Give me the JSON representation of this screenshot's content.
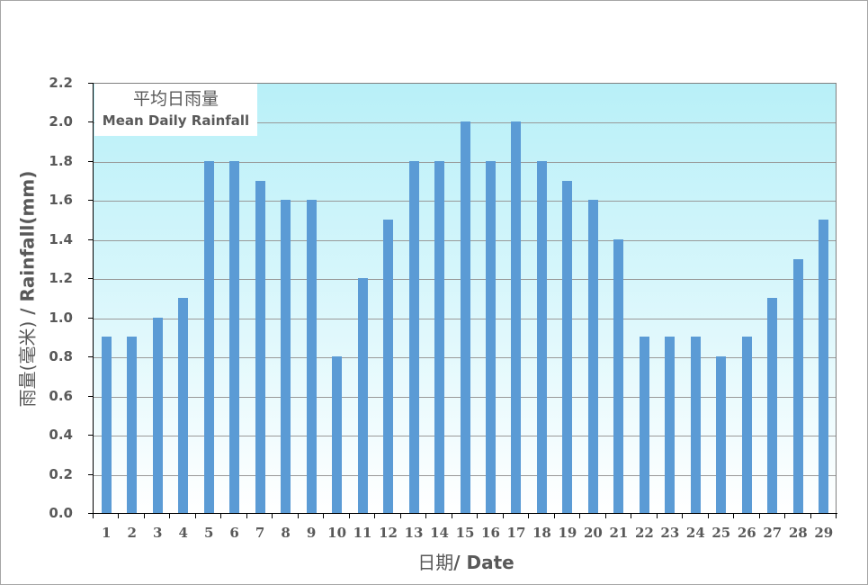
{
  "chart_data": {
    "type": "bar",
    "title": "平均日雨量 Mean Daily Rainfall",
    "title_zh": "平均日雨量",
    "title_en": "Mean Daily Rainfall",
    "xlabel": "日期 / Date",
    "ylabel": "雨量(毫米) / Rainfall(mm)",
    "categories": [
      "1",
      "2",
      "3",
      "4",
      "5",
      "6",
      "7",
      "8",
      "9",
      "10",
      "11",
      "12",
      "13",
      "14",
      "15",
      "16",
      "17",
      "18",
      "19",
      "20",
      "21",
      "22",
      "23",
      "24",
      "25",
      "26",
      "27",
      "28",
      "29"
    ],
    "values": [
      0.9,
      0.9,
      1.0,
      1.1,
      1.8,
      1.8,
      1.7,
      1.6,
      1.6,
      0.8,
      1.2,
      1.5,
      1.8,
      1.8,
      2.0,
      1.8,
      2.0,
      1.8,
      1.7,
      1.6,
      1.4,
      0.9,
      0.9,
      0.9,
      0.8,
      0.9,
      1.1,
      1.3,
      1.5
    ],
    "ylim": [
      0,
      2.2
    ],
    "yticks": [
      "0.0",
      "0.2",
      "0.4",
      "0.6",
      "0.8",
      "1.0",
      "1.2",
      "1.4",
      "1.6",
      "1.8",
      "2.0",
      "2.2"
    ],
    "grid": true,
    "bar_color": "#5b9bd5",
    "legend_position": "top-left"
  },
  "labels": {
    "legend_zh": "平均日雨量",
    "legend_en": "Mean Daily Rainfall",
    "y_title_zh": "雨量(毫米)",
    "y_title_en": " / Rainfall(mm)",
    "x_title_zh": "日期",
    "x_title_en": "/ Date"
  }
}
